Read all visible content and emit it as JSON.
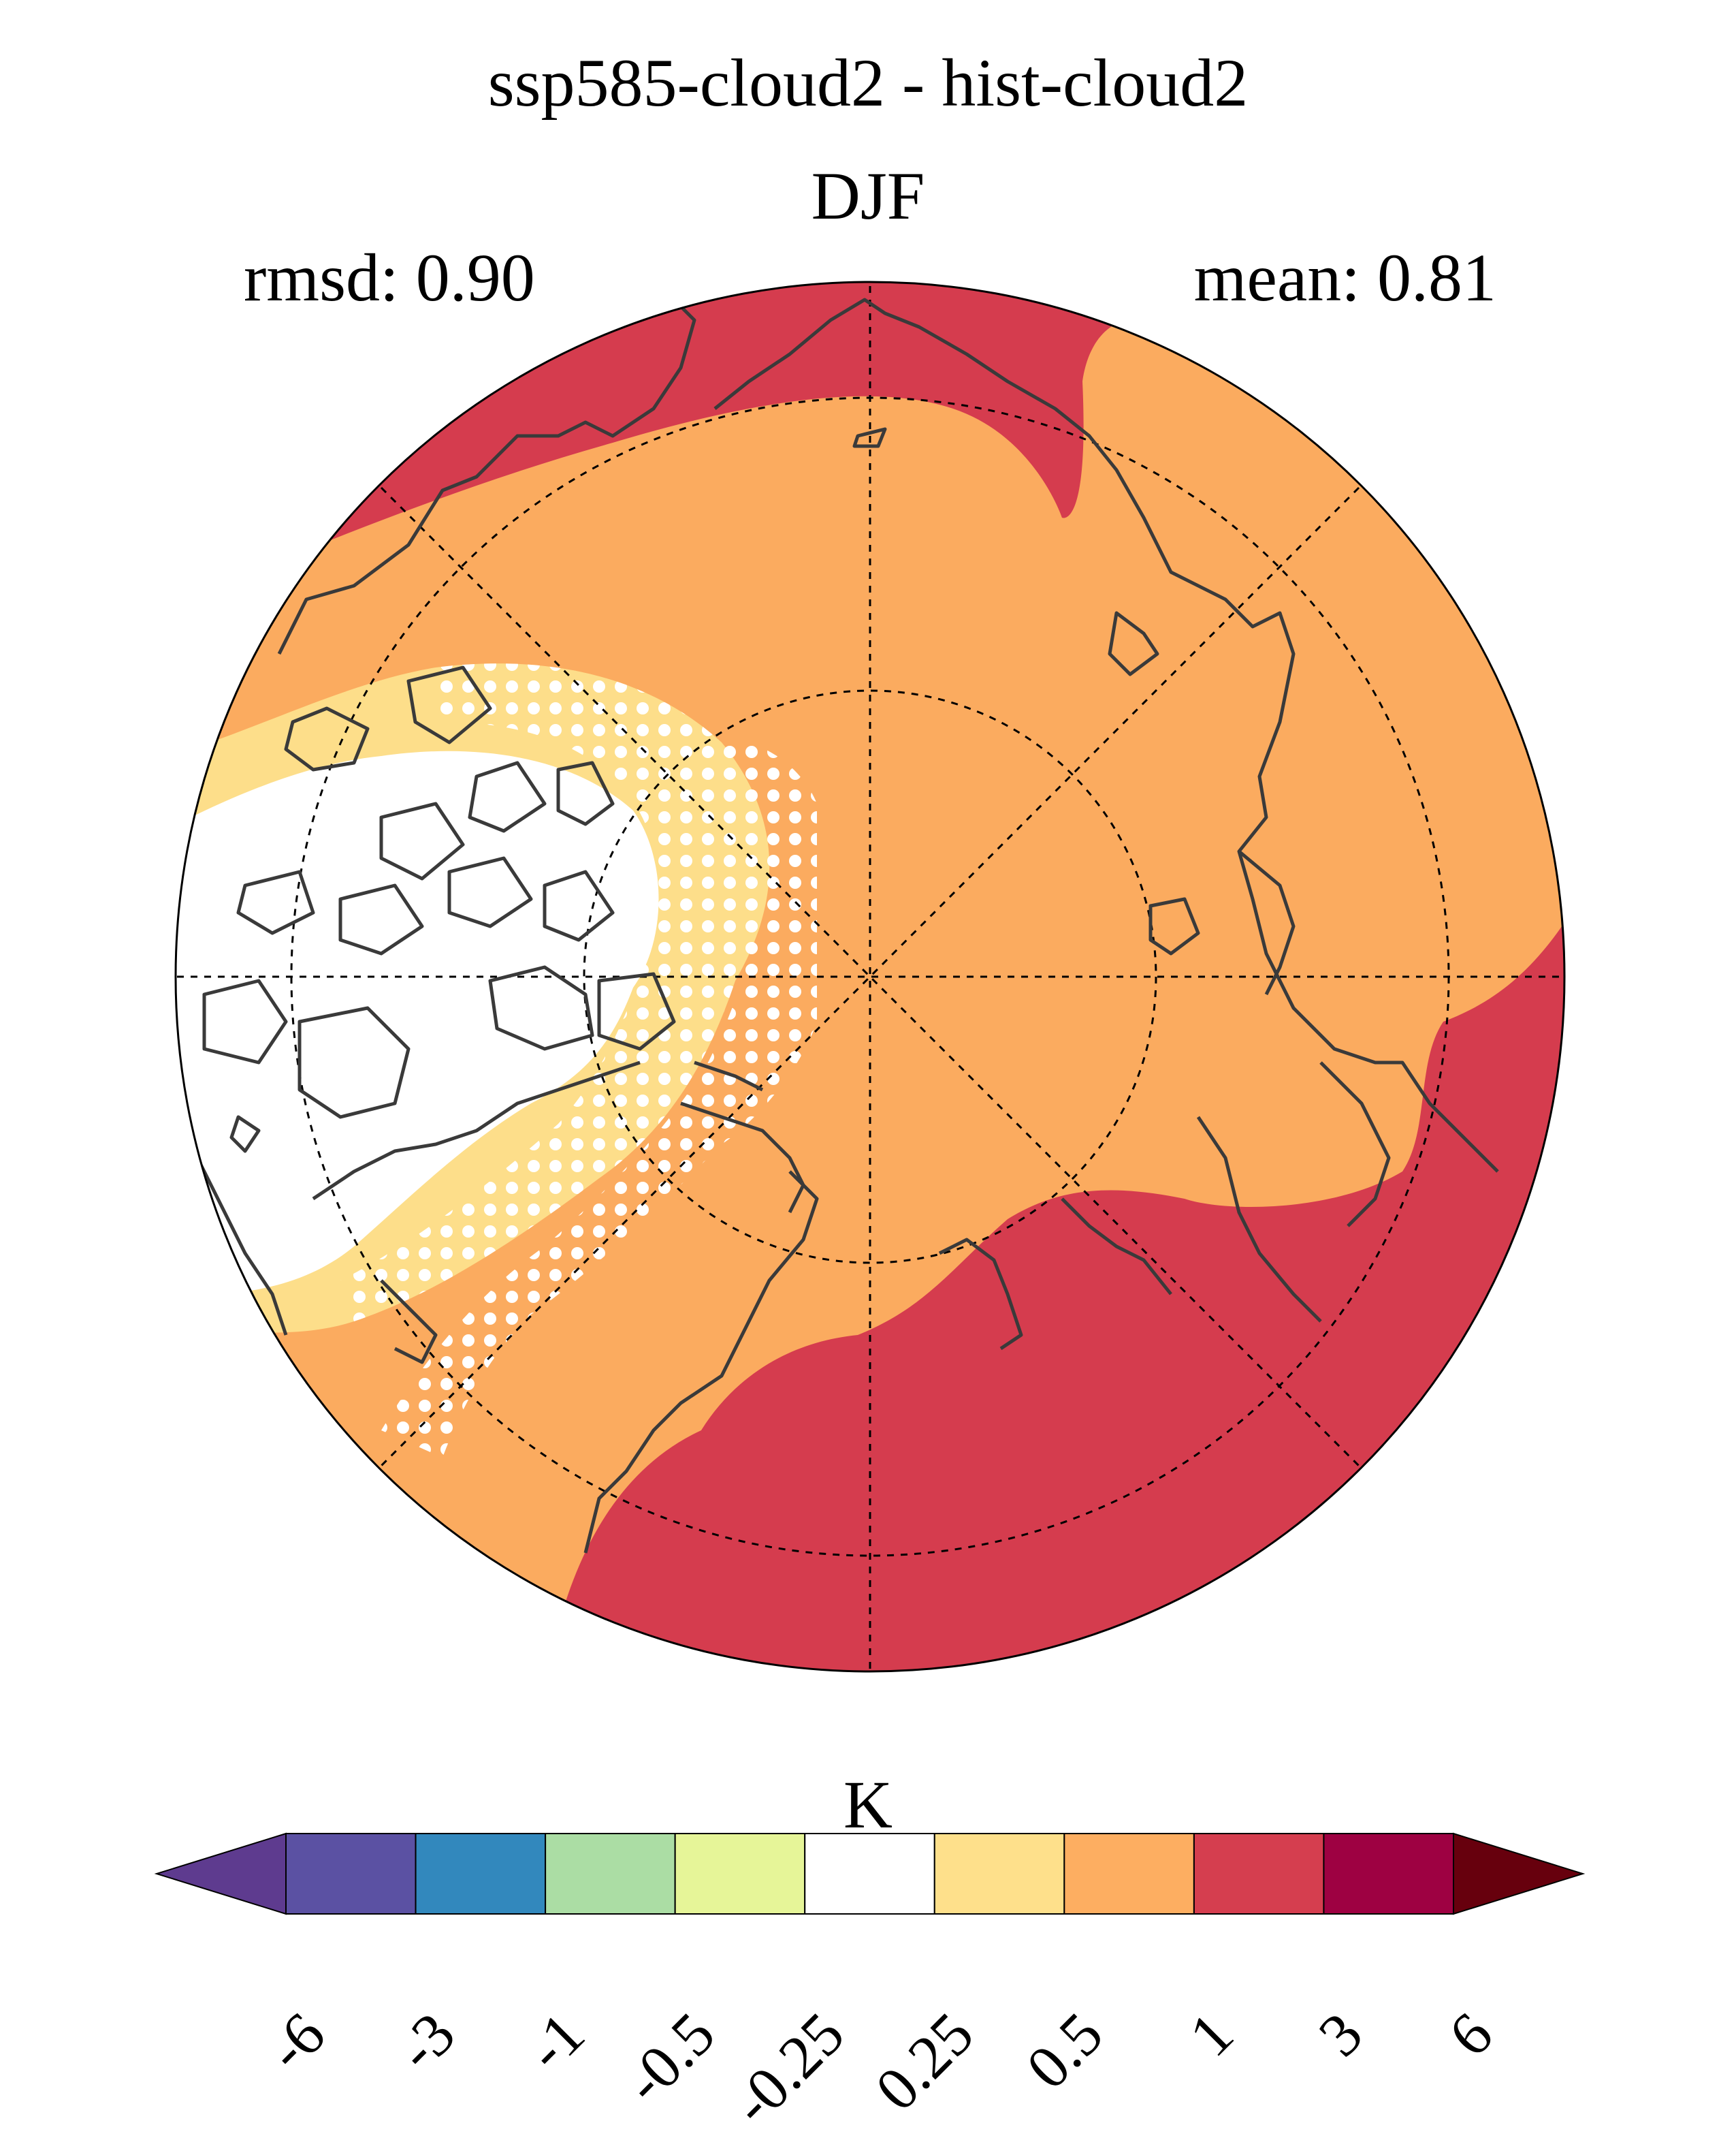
{
  "title": "ssp585-cloud2 - hist-cloud2",
  "season": "DJF",
  "stats": {
    "rmsd": "rmsd: 0.90",
    "mean": "mean: 0.81"
  },
  "projection": "north polar stereographic",
  "colors": {
    "white_band": "#ffffff",
    "light_orange": "#fdde8a",
    "orange": "#fbab5f",
    "red": "#d53c4e",
    "coastline": "#3a3a3a"
  },
  "colorbar": {
    "unit": "K",
    "extend": "both",
    "colors": [
      "#5e3b8f",
      "#5b51a3",
      "#3288bd",
      "#abdda4",
      "#e6f598",
      "#ffffff",
      "#fee08b",
      "#fdae61",
      "#d53e4f",
      "#9e0142",
      "#67000d"
    ],
    "ticks": [
      "-6",
      "-3",
      "-1",
      "-0.5",
      "-0.25",
      "0.25",
      "0.5",
      "1",
      "3",
      "6"
    ]
  }
}
